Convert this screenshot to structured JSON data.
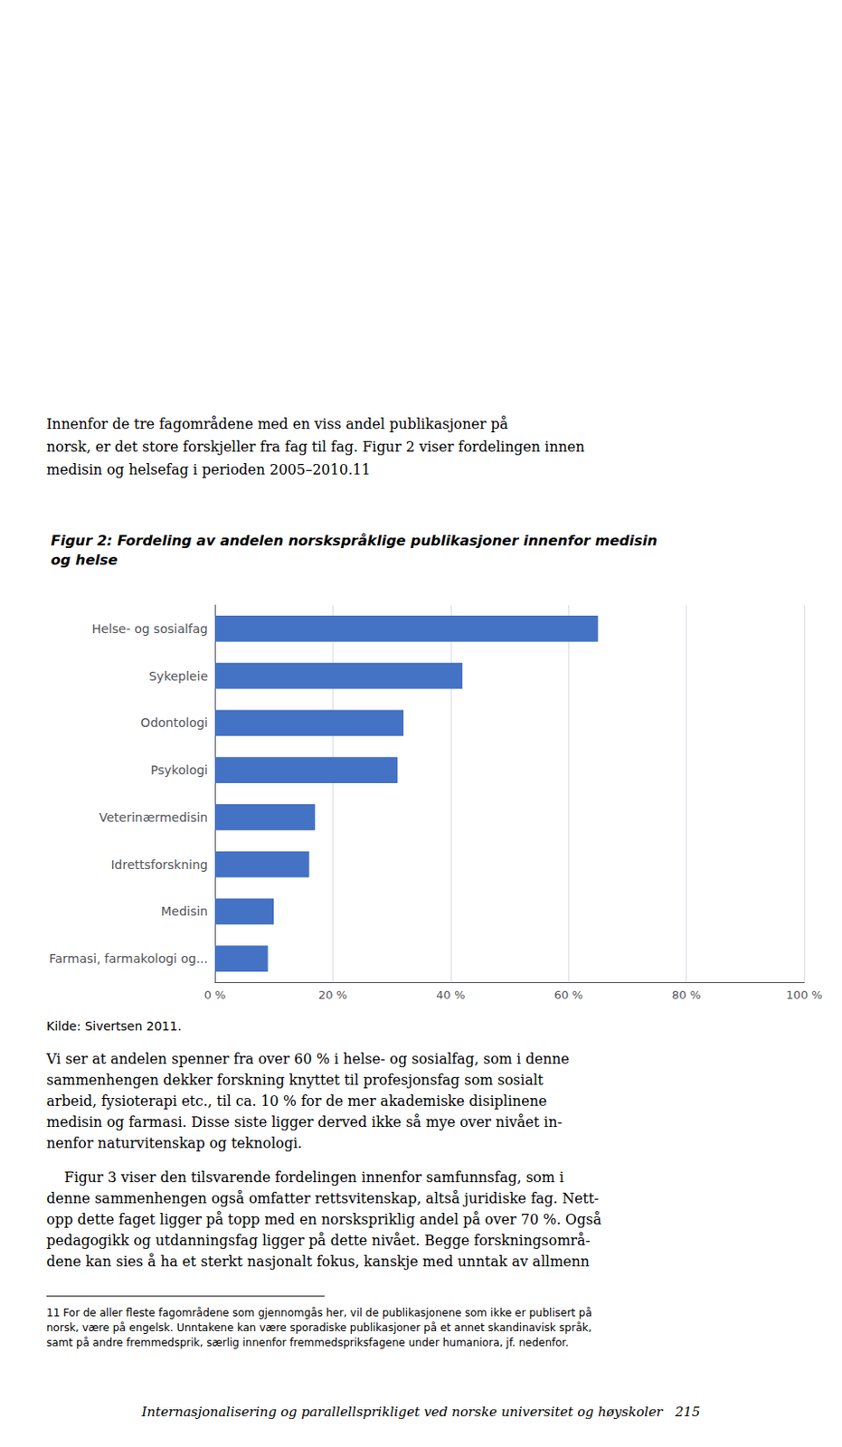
{
  "chart_data": {
    "type": "bar",
    "orientation": "horizontal",
    "title": "Figur 2: Fordeling av andelen norskspråklige publikasjoner innenfor medisin\nog helse",
    "categories": [
      "Helse- og sosialfag",
      "Sykepleie",
      "Odontologi",
      "Psykologi",
      "Veterinærmedisin",
      "Idrettsforskning",
      "Medisin",
      "Farmasi, farmakologi og..."
    ],
    "values": [
      65,
      42,
      32,
      31,
      17,
      16,
      10,
      9
    ],
    "color": "#4472C4",
    "xlim": [
      0,
      100
    ],
    "xticks": [
      {
        "value": 0,
        "label": "0 %"
      },
      {
        "value": 20,
        "label": "20 %"
      },
      {
        "value": 40,
        "label": "40 %"
      },
      {
        "value": 60,
        "label": "60 %"
      },
      {
        "value": 80,
        "label": "80 %"
      },
      {
        "value": 100,
        "label": "100 %"
      }
    ],
    "grid": true,
    "annotations": [
      [
        "Innenfor de tre fagområdene med en viss andel publikasjoner på",
        "norsk, er det store forskjeller fra fag til fag. Figur 2 viser fordelingen innen",
        "medisin og helsefag i perioden 2005–2010.11"
      ],
      [
        "Kilde: Sivertsen 2011."
      ],
      [
        "Vi ser at andelen spenner fra over 60 % i helse- og sosialfag, som i denne",
        "sammenhengen dekker forskning knyttet til profesjonsfag som sosialt",
        "arbeid, fysioterapi etc., til ca. 10 % for de mer akademiske disiplinene",
        "medisin og farmasi. Disse siste ligger derved ikke så mye over nivået in-",
        "nenfor naturvitenskap og teknologi."
      ],
      [
        "    Figur 3 viser den tilsvarende fordelingen innenfor samfunnsfag, som i",
        "denne sammenhengen også omfatter rettsvitenskap, altså juridiske fag. Nett-",
        "opp dette faget ligger på topp med en norskspriklig andel på over 70 %. Også",
        "pedagogikk og utdanningsfag ligger på dette nivået. Begge forskningsområ-",
        "dene kan sies å ha et sterkt nasjonalt fokus, kanskje med unntak av allmenn"
      ],
      [
        "11 For de aller fleste fagområdene som gjennomgås her, vil de publikasjonene som ikke er publisert på",
        "norsk, være på engelsk. Unntakene kan være sporadiske publikasjoner på et annet skandinavisk språk,",
        "samt på andre fremmedsprik, særlig innenfor fremmedspriksfagene under humaniora, jf. nedenfor."
      ],
      [
        "Internasjonalisering og parallellsprikliget ved norske universitet og høyskoler   215"
      ]
    ]
  }
}
